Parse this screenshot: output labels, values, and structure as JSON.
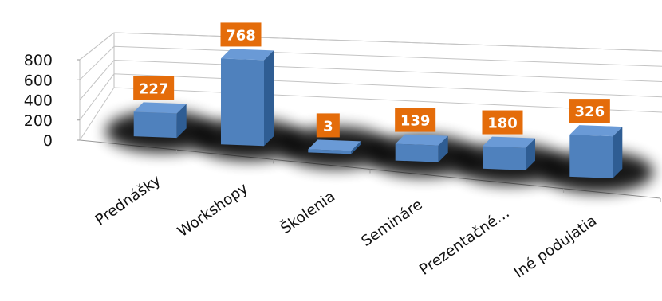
{
  "chart_data": {
    "type": "bar",
    "title": "",
    "xlabel": "",
    "ylabel": "",
    "categories": [
      "Prednášky",
      "Workshopy",
      "Školenia",
      "Semináre",
      "Prezentačné…",
      "Iné podujatia"
    ],
    "values": [
      227,
      768,
      3,
      139,
      180,
      326
    ],
    "ylim": [
      0,
      800
    ],
    "yticks": [
      "0",
      "200",
      "400",
      "600",
      "800"
    ],
    "grid": true,
    "legend": "none",
    "colors": {
      "bar": "#4F81BD",
      "bar_side": "#2F5D93",
      "bar_top": "#6A9AD6",
      "label_bg": "#E46C0A",
      "label_text": "#FFFFFF"
    }
  }
}
